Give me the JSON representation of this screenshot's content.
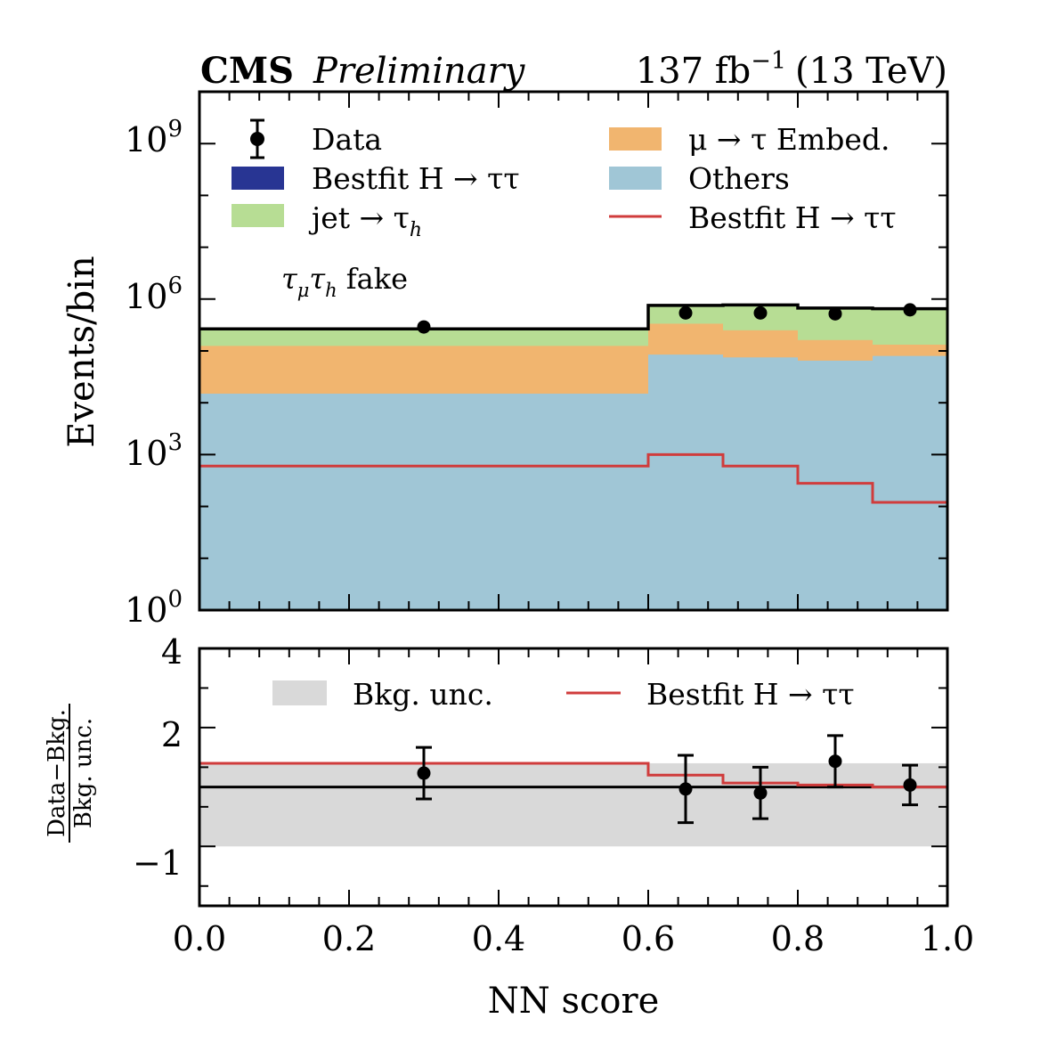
{
  "header": {
    "cms": "CMS",
    "preliminary": "Preliminary",
    "lumi_base": "137 fb",
    "lumi_exp": "−1",
    "lumi_energy": "(13 TeV)"
  },
  "colors": {
    "others": "#a0c6d6",
    "embed": "#f1b56f",
    "jet": "#b7dd94",
    "higgs_stack": "#283593",
    "bestfit": "#d03c3c",
    "unc_band": "#d9d9d9",
    "total": "#000000"
  },
  "chart_data": [
    {
      "type": "bar",
      "title": "",
      "xlabel": "",
      "ylabel": "Events/bin",
      "yscale": "log",
      "ylim": [
        1,
        10000000000
      ],
      "xlim": [
        0.0,
        1.0
      ],
      "annotation": {
        "main": "τ",
        "sub1": "μ",
        "mid": "τ",
        "sub2": "h",
        "tail": " fake"
      },
      "bin_edges": [
        0.0,
        0.6,
        0.7,
        0.8,
        0.9,
        1.0
      ],
      "y_ticks": [
        {
          "value": 1,
          "base": "10",
          "exp": "0"
        },
        {
          "value": 1000,
          "base": "10",
          "exp": "3"
        },
        {
          "value": 1000000,
          "base": "10",
          "exp": "6"
        },
        {
          "value": 1000000000,
          "base": "10",
          "exp": "9"
        }
      ],
      "stack": [
        {
          "name": "Others",
          "color_key": "others",
          "values": [
            15000,
            85000,
            75000,
            65000,
            80000
          ]
        },
        {
          "name": "μ → τ Embed.",
          "color_key": "embed",
          "values": [
            110000,
            250000,
            175000,
            97000,
            52000
          ]
        },
        {
          "name": "jet → τ_h",
          "color_key": "jet",
          "values": [
            140000,
            420000,
            520000,
            510000,
            520000
          ]
        },
        {
          "name": "Bestfit H → ττ",
          "color_key": "higgs_stack",
          "values": [
            600,
            1000,
            600,
            280,
            120
          ]
        }
      ],
      "total": [
        266000,
        756000,
        771000,
        672000,
        652000
      ],
      "bestfit_h": [
        600,
        1000,
        600,
        280,
        120
      ],
      "data": {
        "x": [
          0.3,
          0.65,
          0.75,
          0.85,
          0.95
        ],
        "y": [
          290000,
          540000,
          540000,
          520000,
          620000
        ]
      },
      "legend": {
        "data": "Data",
        "bestfit_stack": "Bestfit H → ττ",
        "jet": {
          "main": "jet → τ",
          "sub": "h"
        },
        "embed": "μ → τ Embed.",
        "others": "Others",
        "bestfit_line": "Bestfit H → ττ"
      }
    },
    {
      "type": "line",
      "title": "",
      "xlabel": "NN score",
      "ylabel_num": "Data−Bkg.",
      "ylabel_den": "Bkg. unc.",
      "ylim": [
        -2.5,
        4
      ],
      "xlim": [
        0.0,
        1.0
      ],
      "y_ticks": [
        {
          "value": -1,
          "label": "−1"
        },
        {
          "value": 2,
          "label": "2"
        },
        {
          "value": 4,
          "label": "4"
        }
      ],
      "x_ticks": [
        {
          "value": 0.0,
          "label": "0.0"
        },
        {
          "value": 0.2,
          "label": "0.2"
        },
        {
          "value": 0.4,
          "label": "0.4"
        },
        {
          "value": 0.6,
          "label": "0.6"
        },
        {
          "value": 0.8,
          "label": "0.8"
        },
        {
          "value": 1.0,
          "label": "1.0"
        }
      ],
      "band": {
        "low": -1,
        "high": 1.1
      },
      "zero_line": 0.5,
      "bestfit_pull": [
        1.1,
        0.8,
        0.6,
        0.55,
        0.5
      ],
      "data": {
        "x": [
          0.3,
          0.65,
          0.75,
          0.85,
          0.95
        ],
        "y": [
          0.85,
          0.45,
          0.35,
          1.15,
          0.55
        ],
        "err": [
          0.65,
          0.85,
          0.65,
          0.65,
          0.5
        ]
      },
      "legend": {
        "band": "Bkg. unc.",
        "bestfit_line": "Bestfit H → ττ"
      }
    }
  ]
}
